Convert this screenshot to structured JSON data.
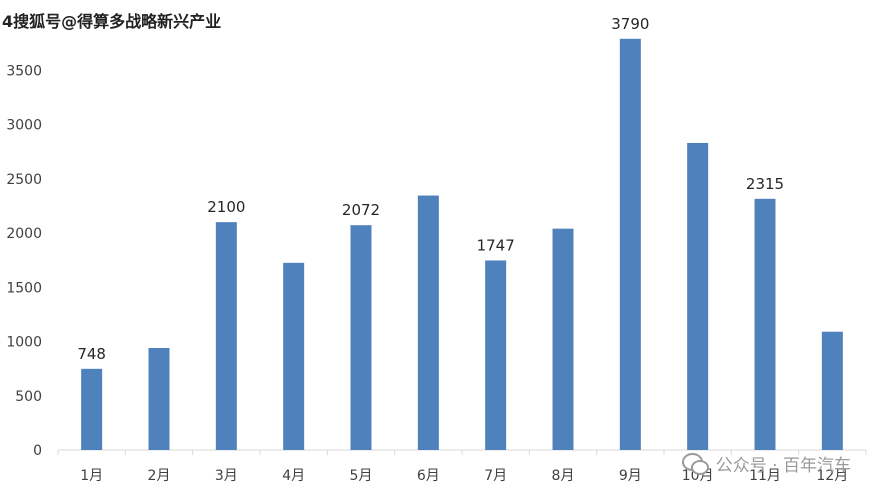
{
  "watermark_top": "4搜狐号@得算多战略新兴产业",
  "watermark_bottom": "公众号 · 百年汽车",
  "colors": {
    "bar": "#4F81BD",
    "axis": "#D9D9D9",
    "text": "#404040",
    "label": "#262626"
  },
  "chart_data": {
    "type": "bar",
    "categories": [
      "1月",
      "2月",
      "3月",
      "4月",
      "5月",
      "6月",
      "7月",
      "8月",
      "9月",
      "10月",
      "11月",
      "12月"
    ],
    "series": [
      {
        "values": [
          748,
          940,
          2100,
          1725,
          2072,
          2345,
          1747,
          2040,
          3790,
          2830,
          2315,
          1090
        ]
      }
    ],
    "data_labels": [
      {
        "category": "1月",
        "text": "748"
      },
      {
        "category": "3月",
        "text": "2100"
      },
      {
        "category": "5月",
        "text": "2072"
      },
      {
        "category": "7月",
        "text": "1747"
      },
      {
        "category": "9月",
        "text": "3790"
      },
      {
        "category": "11月",
        "text": "2315"
      }
    ],
    "yticks": [
      "0",
      "500",
      "1000",
      "1500",
      "2000",
      "2500",
      "3000",
      "3500"
    ],
    "ylim": [
      0,
      4000
    ],
    "grid": false,
    "title": "",
    "xlabel": "",
    "ylabel": ""
  }
}
